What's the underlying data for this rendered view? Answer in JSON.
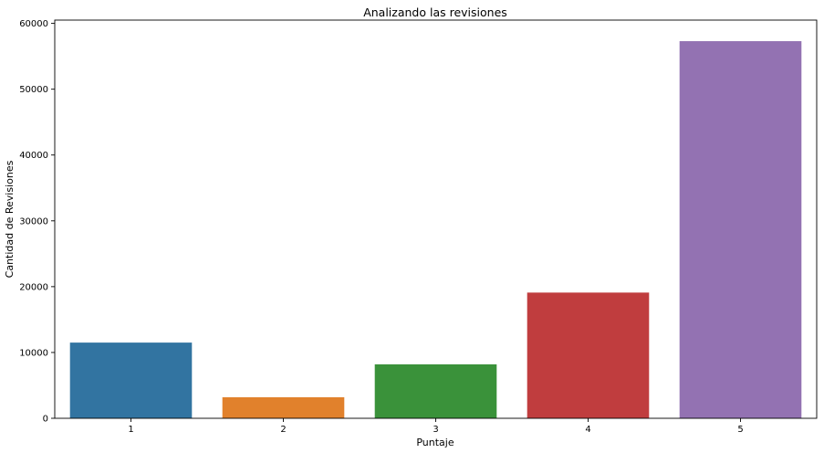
{
  "chart_data": {
    "type": "bar",
    "title": "Analizando las revisiones",
    "xlabel": "Puntaje",
    "ylabel": "Cantidad de Revisiones",
    "categories": [
      "1",
      "2",
      "3",
      "4",
      "5"
    ],
    "values": [
      11500,
      3200,
      8200,
      19100,
      57300
    ],
    "colors": [
      "#3274a1",
      "#e1812c",
      "#3a923a",
      "#c03d3e",
      "#9372b2"
    ],
    "ylim": [
      0,
      60500
    ],
    "yticks": [
      0,
      10000,
      20000,
      30000,
      40000,
      50000,
      60000
    ],
    "grid": false,
    "legend": "none"
  }
}
